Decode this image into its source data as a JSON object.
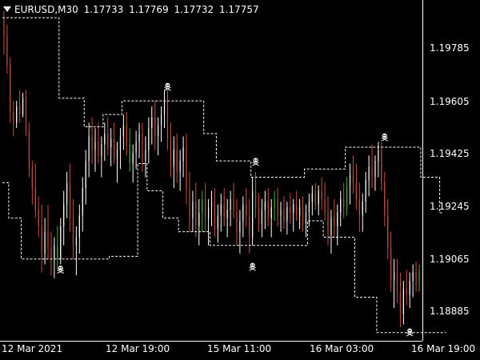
{
  "header": {
    "symbol": "EURUSD,M30",
    "open": "1.17733",
    "high": "1.17769",
    "low": "1.17732",
    "close": "1.17757",
    "menu_icon": "triangle-down-icon"
  },
  "y_axis": {
    "labels": [
      "1.19785",
      "1.19605",
      "1.19425",
      "1.19245",
      "1.19065",
      "1.18885"
    ]
  },
  "x_axis": {
    "labels": [
      "12 Mar 2021",
      "12 Mar 19:00",
      "15 Mar 11:00",
      "16 Mar 03:00",
      "16 Mar 19:00"
    ]
  },
  "colors": {
    "background": "#000000",
    "bull": "#ffffff",
    "bear": "#c8503c",
    "highlight": "#3ab53a",
    "channel": "#ffffff",
    "marker": "#ffffff"
  },
  "chart_data": {
    "type": "candlestick",
    "ylim": [
      1.188,
      1.2005
    ],
    "marker_icon": "skull-crossbones-icon",
    "channel_upper_levels": [
      1.19985,
      1.19985,
      1.19985,
      1.19985,
      1.19985,
      1.19985,
      1.19985,
      1.19985,
      1.19985,
      1.19985,
      1.19985,
      1.19985,
      1.19985,
      1.19985,
      1.19985,
      1.19985,
      1.19985,
      1.19985,
      1.1969,
      1.1969,
      1.1969,
      1.1969,
      1.1969,
      1.1969,
      1.1969,
      1.1969,
      1.19585,
      1.19585,
      1.19585,
      1.19585,
      1.19585,
      1.19585,
      1.1963,
      1.1963,
      1.1963,
      1.1963,
      1.1963,
      1.1963,
      1.1968,
      1.1968,
      1.1968,
      1.1968,
      1.1968,
      1.1968,
      1.1968,
      1.1968,
      1.1968,
      1.1968,
      1.1968,
      1.1968,
      1.1968,
      1.1968,
      1.1968,
      1.1968,
      1.1968,
      1.1968,
      1.1968,
      1.1968,
      1.1968,
      1.1968,
      1.1968,
      1.1968,
      1.1968,
      1.1968,
      1.1956,
      1.1956,
      1.1956,
      1.1956,
      1.1946,
      1.1946,
      1.1946,
      1.1946,
      1.1946,
      1.1946,
      1.1946,
      1.1946,
      1.1946,
      1.1946,
      1.1946,
      1.194,
      1.194,
      1.194,
      1.194,
      1.194,
      1.194,
      1.194,
      1.194,
      1.194,
      1.194,
      1.194,
      1.194,
      1.194,
      1.194,
      1.194,
      1.194,
      1.194,
      1.1943,
      1.1943,
      1.1943,
      1.1943,
      1.1943,
      1.1943,
      1.1943,
      1.1943,
      1.1943,
      1.1943,
      1.1943,
      1.1943,
      1.1943,
      1.1951,
      1.1951,
      1.1951,
      1.1951,
      1.1951,
      1.1951,
      1.1951,
      1.1951,
      1.1951,
      1.1951,
      1.1951,
      1.1951,
      1.1951,
      1.1951,
      1.1951,
      1.1951,
      1.1951,
      1.1951,
      1.1951,
      1.1951,
      1.1951,
      1.1951,
      1.1951,
      1.1951,
      1.194,
      1.194,
      1.194,
      1.194,
      1.194,
      1.194,
      1.1927
    ],
    "channel_lower_levels": [
      1.1938,
      1.1938,
      1.1925,
      1.1925,
      1.1925,
      1.1925,
      1.191,
      1.191,
      1.191,
      1.191,
      1.191,
      1.191,
      1.191,
      1.191,
      1.191,
      1.191,
      1.191,
      1.191,
      1.191,
      1.191,
      1.191,
      1.191,
      1.191,
      1.191,
      1.191,
      1.191,
      1.191,
      1.191,
      1.191,
      1.191,
      1.191,
      1.191,
      1.191,
      1.191,
      1.1911,
      1.1911,
      1.1911,
      1.1911,
      1.1911,
      1.1911,
      1.1911,
      1.1911,
      1.1911,
      1.1945,
      1.1945,
      1.1945,
      1.1935,
      1.1935,
      1.1935,
      1.1935,
      1.1935,
      1.1925,
      1.1925,
      1.1925,
      1.1925,
      1.1925,
      1.192,
      1.192,
      1.192,
      1.192,
      1.192,
      1.192,
      1.192,
      1.192,
      1.192,
      1.192,
      1.1915,
      1.1915,
      1.1915,
      1.1915,
      1.1915,
      1.1915,
      1.1915,
      1.1915,
      1.1915,
      1.1915,
      1.1915,
      1.1915,
      1.1915,
      1.1915,
      1.1915,
      1.1915,
      1.1915,
      1.1915,
      1.1915,
      1.1915,
      1.1915,
      1.1915,
      1.1915,
      1.1915,
      1.1915,
      1.1915,
      1.1915,
      1.1915,
      1.1915,
      1.1915,
      1.1915,
      1.1924,
      1.1924,
      1.1924,
      1.1924,
      1.1924,
      1.1918,
      1.1918,
      1.1918,
      1.1918,
      1.1918,
      1.1918,
      1.1918,
      1.1918,
      1.1918,
      1.1918,
      1.1896,
      1.1896,
      1.1896,
      1.1896,
      1.1896,
      1.1896,
      1.1896,
      1.1883,
      1.1883,
      1.1883,
      1.1883,
      1.1883,
      1.1883,
      1.1883,
      1.1883,
      1.1883,
      1.1883,
      1.1883,
      1.1883,
      1.1883,
      1.1883,
      1.1883,
      1.1883,
      1.1883,
      1.1883,
      1.1883,
      1.1883,
      1.1883,
      1.1883
    ],
    "markers": [
      {
        "index": 18,
        "type": "low",
        "value": 1.1908
      },
      {
        "index": 52,
        "type": "high",
        "value": 1.19715
      },
      {
        "index": 80,
        "type": "high",
        "value": 1.1944
      },
      {
        "index": 79,
        "type": "low",
        "value": 1.1909
      },
      {
        "index": 121,
        "type": "high",
        "value": 1.1953
      },
      {
        "index": 129,
        "type": "low",
        "value": 1.1885
      }
    ],
    "candles": [
      [
        1.1998,
        1.2001,
        1.1985,
        1.1992
      ],
      [
        1.1992,
        1.1996,
        1.1978,
        1.1981
      ],
      [
        1.1981,
        1.1984,
        1.196,
        1.1964
      ],
      [
        1.1964,
        1.1968,
        1.1955,
        1.196
      ],
      [
        1.196,
        1.1968,
        1.1958,
        1.1966
      ],
      [
        1.1966,
        1.1972,
        1.196,
        1.1963
      ],
      [
        1.1963,
        1.1971,
        1.1962,
        1.1969
      ],
      [
        1.1969,
        1.1972,
        1.1955,
        1.1957
      ],
      [
        1.1957,
        1.196,
        1.194,
        1.1943
      ],
      [
        1.1943,
        1.1946,
        1.193,
        1.1936
      ],
      [
        1.1936,
        1.1945,
        1.1925,
        1.1928
      ],
      [
        1.1928,
        1.1933,
        1.1918,
        1.1922
      ],
      [
        1.1922,
        1.193,
        1.1905,
        1.1912
      ],
      [
        1.1912,
        1.1925,
        1.1908,
        1.192
      ],
      [
        1.192,
        1.193,
        1.191,
        1.1914
      ],
      [
        1.1914,
        1.192,
        1.1904,
        1.191
      ],
      [
        1.191,
        1.1918,
        1.1903,
        1.1915
      ],
      [
        1.1915,
        1.1922,
        1.1906,
        1.191
      ],
      [
        1.191,
        1.1925,
        1.1908,
        1.1922
      ],
      [
        1.1922,
        1.1935,
        1.1915,
        1.193
      ],
      [
        1.193,
        1.1942,
        1.1925,
        1.1938
      ],
      [
        1.1938,
        1.1945,
        1.192,
        1.1925
      ],
      [
        1.1925,
        1.1932,
        1.191,
        1.1915
      ],
      [
        1.1915,
        1.1922,
        1.1904,
        1.1918
      ],
      [
        1.1918,
        1.193,
        1.1912,
        1.1926
      ],
      [
        1.1926,
        1.194,
        1.192,
        1.1936
      ],
      [
        1.1936,
        1.195,
        1.193,
        1.1946
      ],
      [
        1.1946,
        1.196,
        1.194,
        1.1955
      ],
      [
        1.1955,
        1.1962,
        1.1945,
        1.195
      ],
      [
        1.195,
        1.1958,
        1.1942,
        1.1953
      ],
      [
        1.1953,
        1.196,
        1.1945,
        1.1948
      ],
      [
        1.1948,
        1.1955,
        1.194,
        1.1952
      ],
      [
        1.1952,
        1.196,
        1.1946,
        1.1956
      ],
      [
        1.1956,
        1.1962,
        1.1948,
        1.1951
      ],
      [
        1.1951,
        1.1958,
        1.1944,
        1.1954
      ],
      [
        1.1954,
        1.196,
        1.1945,
        1.1947
      ],
      [
        1.1947,
        1.1953,
        1.1938,
        1.195
      ],
      [
        1.195,
        1.1958,
        1.1943,
        1.1955
      ],
      [
        1.1955,
        1.1963,
        1.195,
        1.1959
      ],
      [
        1.1959,
        1.1964,
        1.1948,
        1.1952
      ],
      [
        1.1952,
        1.1958,
        1.1942,
        1.1945
      ],
      [
        1.1945,
        1.1952,
        1.1938,
        1.1949
      ],
      [
        1.1949,
        1.1957,
        1.1943,
        1.1953
      ],
      [
        1.1953,
        1.196,
        1.1947,
        1.1956
      ],
      [
        1.1956,
        1.196,
        1.1942,
        1.1946
      ],
      [
        1.1946,
        1.1955,
        1.194,
        1.195
      ],
      [
        1.195,
        1.1962,
        1.1945,
        1.1958
      ],
      [
        1.1958,
        1.1966,
        1.1952,
        1.1962
      ],
      [
        1.1962,
        1.1968,
        1.195,
        1.1955
      ],
      [
        1.1955,
        1.1962,
        1.1948,
        1.1959
      ],
      [
        1.1959,
        1.1966,
        1.1953,
        1.1963
      ],
      [
        1.1963,
        1.1972,
        1.1958,
        1.1968
      ],
      [
        1.1968,
        1.1972,
        1.195,
        1.1954
      ],
      [
        1.1954,
        1.196,
        1.194,
        1.1944
      ],
      [
        1.1944,
        1.1955,
        1.1936,
        1.195
      ],
      [
        1.195,
        1.1956,
        1.1938,
        1.1942
      ],
      [
        1.1942,
        1.195,
        1.1935,
        1.1946
      ],
      [
        1.1946,
        1.1955,
        1.194,
        1.1951
      ],
      [
        1.1951,
        1.1956,
        1.193,
        1.1935
      ],
      [
        1.1935,
        1.1942,
        1.192,
        1.1925
      ],
      [
        1.1925,
        1.1935,
        1.192,
        1.1931
      ],
      [
        1.1931,
        1.1938,
        1.1918,
        1.1922
      ],
      [
        1.1922,
        1.1932,
        1.1915,
        1.1927
      ],
      [
        1.1927,
        1.1935,
        1.192,
        1.1932
      ],
      [
        1.1932,
        1.1938,
        1.192,
        1.1925
      ],
      [
        1.1925,
        1.1932,
        1.1915,
        1.1929
      ],
      [
        1.1929,
        1.1935,
        1.1922,
        1.1931
      ],
      [
        1.1931,
        1.1936,
        1.1918,
        1.1921
      ],
      [
        1.1921,
        1.193,
        1.1916,
        1.1926
      ],
      [
        1.1926,
        1.1934,
        1.192,
        1.193
      ],
      [
        1.193,
        1.1936,
        1.1922,
        1.1925
      ],
      [
        1.1925,
        1.1932,
        1.1918,
        1.1928
      ],
      [
        1.1928,
        1.1935,
        1.1922,
        1.1932
      ],
      [
        1.1932,
        1.1938,
        1.1925,
        1.1927
      ],
      [
        1.1927,
        1.1932,
        1.1915,
        1.192
      ],
      [
        1.192,
        1.1928,
        1.1912,
        1.1924
      ],
      [
        1.1924,
        1.1933,
        1.1918,
        1.193
      ],
      [
        1.193,
        1.1936,
        1.1922,
        1.1926
      ],
      [
        1.1926,
        1.1932,
        1.1912,
        1.1918
      ],
      [
        1.1918,
        1.194,
        1.1915,
        1.1935
      ],
      [
        1.1935,
        1.1942,
        1.1925,
        1.1929
      ],
      [
        1.1929,
        1.1934,
        1.192,
        1.1923
      ],
      [
        1.1923,
        1.1932,
        1.1918,
        1.1928
      ],
      [
        1.1928,
        1.1935,
        1.1921,
        1.1931
      ],
      [
        1.1931,
        1.1936,
        1.1922,
        1.1925
      ],
      [
        1.1925,
        1.1932,
        1.1918,
        1.1929
      ],
      [
        1.1929,
        1.1935,
        1.1924,
        1.1932
      ],
      [
        1.1932,
        1.1936,
        1.1922,
        1.1926
      ],
      [
        1.1926,
        1.1931,
        1.192,
        1.1928
      ],
      [
        1.1928,
        1.1933,
        1.1921,
        1.1924
      ],
      [
        1.1924,
        1.1931,
        1.1919,
        1.1929
      ],
      [
        1.1929,
        1.1934,
        1.1923,
        1.1927
      ],
      [
        1.1927,
        1.1932,
        1.192,
        1.193
      ],
      [
        1.193,
        1.1935,
        1.1924,
        1.1926
      ],
      [
        1.1926,
        1.1932,
        1.1921,
        1.1929
      ],
      [
        1.1929,
        1.1933,
        1.192,
        1.1923
      ],
      [
        1.1923,
        1.193,
        1.1918,
        1.1927
      ],
      [
        1.1927,
        1.1934,
        1.1922,
        1.1931
      ],
      [
        1.1931,
        1.1937,
        1.1926,
        1.1934
      ],
      [
        1.1934,
        1.1938,
        1.1928,
        1.193
      ],
      [
        1.193,
        1.1937,
        1.1926,
        1.1935
      ],
      [
        1.1935,
        1.194,
        1.1928,
        1.1932
      ],
      [
        1.1932,
        1.1938,
        1.1924,
        1.1927
      ],
      [
        1.1927,
        1.1933,
        1.1915,
        1.1919
      ],
      [
        1.1919,
        1.1928,
        1.1912,
        1.1925
      ],
      [
        1.1925,
        1.1932,
        1.1918,
        1.1922
      ],
      [
        1.1922,
        1.193,
        1.1915,
        1.1927
      ],
      [
        1.1927,
        1.1935,
        1.1922,
        1.1932
      ],
      [
        1.1932,
        1.1938,
        1.1925,
        1.1929
      ],
      [
        1.1929,
        1.194,
        1.1926,
        1.1937
      ],
      [
        1.1937,
        1.1945,
        1.193,
        1.1941
      ],
      [
        1.1941,
        1.1948,
        1.1934,
        1.1938
      ],
      [
        1.1938,
        1.1945,
        1.1928,
        1.1932
      ],
      [
        1.1932,
        1.1938,
        1.192,
        1.1926
      ],
      [
        1.1926,
        1.1934,
        1.192,
        1.1931
      ],
      [
        1.1931,
        1.1942,
        1.1927,
        1.1939
      ],
      [
        1.1939,
        1.1948,
        1.1933,
        1.1944
      ],
      [
        1.1944,
        1.1952,
        1.1936,
        1.194
      ],
      [
        1.194,
        1.1948,
        1.1935,
        1.1946
      ],
      [
        1.1946,
        1.1953,
        1.194,
        1.195
      ],
      [
        1.195,
        1.1953,
        1.1935,
        1.1938
      ],
      [
        1.1938,
        1.1942,
        1.1922,
        1.1926
      ],
      [
        1.1926,
        1.1932,
        1.191,
        1.1914
      ],
      [
        1.1914,
        1.192,
        1.1898,
        1.1902
      ],
      [
        1.1902,
        1.191,
        1.1892,
        1.1905
      ],
      [
        1.1905,
        1.191,
        1.1894,
        1.1898
      ],
      [
        1.1898,
        1.1905,
        1.1885,
        1.189
      ],
      [
        1.189,
        1.1902,
        1.1886,
        1.1899
      ],
      [
        1.1899,
        1.1906,
        1.1893,
        1.1897
      ],
      [
        1.1897,
        1.1905,
        1.1892,
        1.1902
      ],
      [
        1.1902,
        1.1908,
        1.1896,
        1.1905
      ],
      [
        1.1905,
        1.1909,
        1.1898,
        1.1901
      ],
      [
        1.1901,
        1.1908,
        1.1898,
        1.1906
      ]
    ]
  }
}
